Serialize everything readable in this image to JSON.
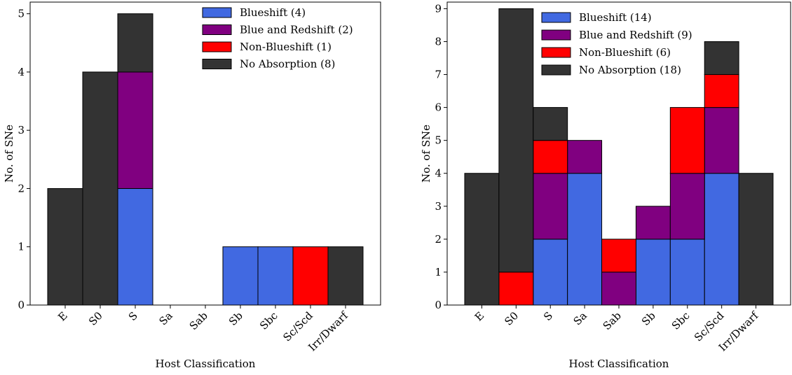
{
  "chart_data": [
    {
      "type": "stacked_bar",
      "xlabel": "Host Classification",
      "ylabel": "No. of SNe",
      "categories": [
        "E",
        "S0",
        "S",
        "Sa",
        "Sab",
        "Sb",
        "Sbc",
        "Sc/Scd",
        "Irr/Dwarf"
      ],
      "series": [
        {
          "name": "Blueshift (4)",
          "color": "#4169e1",
          "values": [
            0,
            0,
            2,
            0,
            0,
            1,
            1,
            0,
            0
          ]
        },
        {
          "name": "Blue and Redshift (2)",
          "color": "#800080",
          "values": [
            0,
            0,
            2,
            0,
            0,
            0,
            0,
            0,
            0
          ]
        },
        {
          "name": "Non-Blueshift (1)",
          "color": "#ff0000",
          "values": [
            0,
            0,
            0,
            0,
            0,
            0,
            0,
            1,
            0
          ]
        },
        {
          "name": "No Absorption (8)",
          "color": "#333333",
          "values": [
            2,
            4,
            1,
            0,
            0,
            0,
            0,
            0,
            1
          ]
        }
      ],
      "ylim": [
        0,
        5.2
      ],
      "yticks": [
        0,
        1,
        2,
        3,
        4,
        5
      ],
      "legend": "upper right"
    },
    {
      "type": "stacked_bar",
      "xlabel": "Host Classification",
      "ylabel": "No. of SNe",
      "categories": [
        "E",
        "S0",
        "S",
        "Sa",
        "Sab",
        "Sb",
        "Sbc",
        "Sc/Scd",
        "Irr/Dwarf"
      ],
      "series": [
        {
          "name": "Blueshift (14)",
          "color": "#4169e1",
          "values": [
            0,
            0,
            2,
            4,
            0,
            2,
            2,
            4,
            0
          ]
        },
        {
          "name": "Blue and Redshift (9)",
          "color": "#800080",
          "values": [
            0,
            0,
            2,
            1,
            1,
            1,
            2,
            2,
            0
          ]
        },
        {
          "name": "Non-Blueshift (6)",
          "color": "#ff0000",
          "values": [
            0,
            1,
            1,
            0,
            1,
            0,
            2,
            1,
            0
          ]
        },
        {
          "name": "No Absorption (18)",
          "color": "#333333",
          "values": [
            4,
            8,
            1,
            0,
            0,
            0,
            0,
            1,
            4
          ]
        }
      ],
      "ylim": [
        0,
        9.2
      ],
      "yticks": [
        0,
        1,
        2,
        3,
        4,
        5,
        6,
        7,
        8,
        9
      ],
      "legend": "upper right"
    }
  ]
}
